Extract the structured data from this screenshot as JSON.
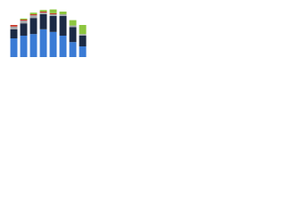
{
  "chart_data": {
    "type": "bar",
    "stacked": true,
    "categories": [
      null,
      null,
      null,
      null,
      null,
      null,
      null,
      null
    ],
    "series": [
      {
        "name": null,
        "color": "#3a7bd5",
        "values": [
          35,
          40,
          43,
          52,
          47,
          40,
          28,
          20
        ]
      },
      {
        "name": null,
        "color": "#1b2a45",
        "values": [
          17,
          23,
          30,
          28,
          30,
          37,
          28,
          20
        ]
      },
      {
        "name": null,
        "color": "#a3a7ab",
        "values": [
          5,
          5,
          5,
          3,
          3,
          3,
          3,
          3
        ]
      },
      {
        "name": null,
        "color": "#c8392b",
        "values": [
          3,
          2,
          2,
          2,
          2,
          0,
          0,
          0
        ]
      },
      {
        "name": null,
        "color": "#8dc63f",
        "values": [
          0,
          2,
          3,
          3,
          7,
          5,
          10,
          17
        ]
      }
    ],
    "ylim": [
      0,
      100
    ]
  }
}
